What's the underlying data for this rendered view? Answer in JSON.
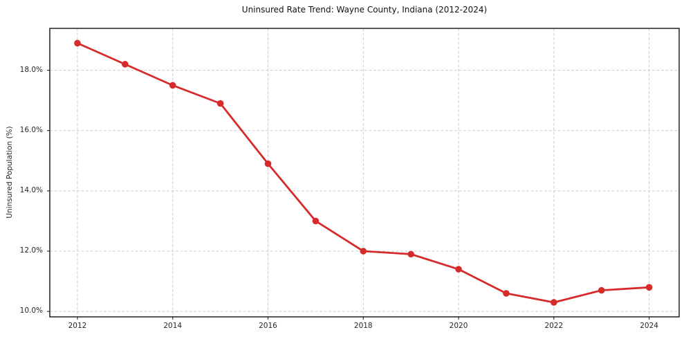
{
  "chart_data": {
    "type": "line",
    "title": "Uninsured Rate Trend: Wayne County, Indiana (2012-2024)",
    "xlabel": "",
    "ylabel": "Uninsured Population (%)",
    "x": [
      2012,
      2013,
      2014,
      2015,
      2016,
      2017,
      2018,
      2019,
      2020,
      2021,
      2022,
      2023,
      2024
    ],
    "values": [
      18.9,
      18.2,
      17.5,
      16.9,
      14.9,
      13.0,
      12.0,
      11.9,
      11.4,
      10.6,
      10.3,
      10.7,
      10.8
    ],
    "xticks": {
      "values": [
        2012,
        2014,
        2016,
        2018,
        2020,
        2022,
        2024
      ],
      "labels": [
        "2012",
        "2014",
        "2016",
        "2018",
        "2020",
        "2022",
        "2024"
      ]
    },
    "yticks": {
      "values": [
        10,
        12,
        14,
        16,
        18
      ],
      "labels": [
        "10.0%",
        "12.0%",
        "14.0%",
        "16.0%",
        "18.0%"
      ]
    },
    "xlim": [
      2011.42,
      2024.63
    ],
    "ylim": [
      9.82,
      19.39
    ],
    "grid": true,
    "grid_style": "dashed",
    "legend": "none",
    "line_color": "#d62b2b",
    "marker": "circle"
  }
}
